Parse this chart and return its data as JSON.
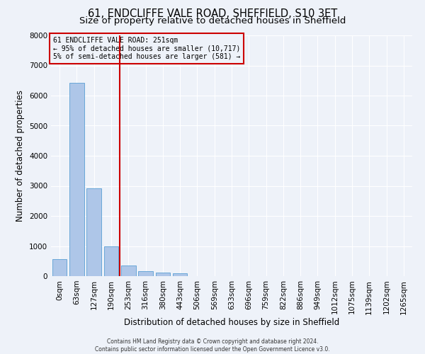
{
  "title1": "61, ENDCLIFFE VALE ROAD, SHEFFIELD, S10 3ET",
  "title2": "Size of property relative to detached houses in Sheffield",
  "xlabel": "Distribution of detached houses by size in Sheffield",
  "ylabel": "Number of detached properties",
  "footer1": "Contains HM Land Registry data © Crown copyright and database right 2024.",
  "footer2": "Contains public sector information licensed under the Open Government Licence v3.0.",
  "bar_labels": [
    "0sqm",
    "63sqm",
    "127sqm",
    "190sqm",
    "253sqm",
    "316sqm",
    "380sqm",
    "443sqm",
    "506sqm",
    "569sqm",
    "633sqm",
    "696sqm",
    "759sqm",
    "822sqm",
    "886sqm",
    "949sqm",
    "1012sqm",
    "1075sqm",
    "1139sqm",
    "1202sqm",
    "1265sqm"
  ],
  "bar_values": [
    570,
    6430,
    2920,
    1000,
    360,
    175,
    115,
    90,
    0,
    0,
    0,
    0,
    0,
    0,
    0,
    0,
    0,
    0,
    0,
    0,
    0
  ],
  "bar_color": "#aec6e8",
  "bar_edgecolor": "#5a9fd4",
  "vline_color": "#cc0000",
  "annotation_text": "61 ENDCLIFFE VALE ROAD: 251sqm\n← 95% of detached houses are smaller (10,717)\n5% of semi-detached houses are larger (581) →",
  "annotation_box_color": "#cc0000",
  "ylim": [
    0,
    8000
  ],
  "yticks": [
    0,
    1000,
    2000,
    3000,
    4000,
    5000,
    6000,
    7000,
    8000
  ],
  "background_color": "#eef2f9",
  "grid_color": "#ffffff",
  "title1_fontsize": 10.5,
  "title2_fontsize": 9.5,
  "xlabel_fontsize": 8.5,
  "ylabel_fontsize": 8.5,
  "tick_fontsize": 7.5,
  "annotation_fontsize": 7.0,
  "footer_fontsize": 5.5
}
